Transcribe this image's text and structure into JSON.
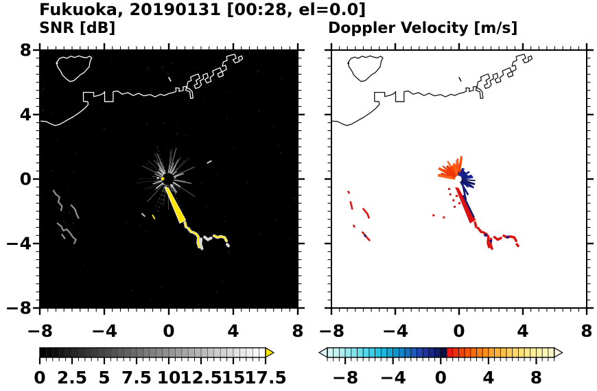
{
  "title": "Fukuoka, 20190131 [00:28, el=0.0]",
  "panels": {
    "snr": {
      "title": "SNR [dB]"
    },
    "velocity": {
      "title": "Doppler Velocity [m/s]"
    }
  },
  "axes": {
    "range": [
      -8,
      8
    ],
    "major_step": 4,
    "minor_step": 0.5,
    "x_tick_values": [
      -8,
      -4,
      0,
      4,
      8
    ],
    "x_tick_labels": [
      "−8",
      "−4",
      "0",
      "4",
      "8"
    ],
    "y_tick_values": [
      8,
      4,
      0,
      -4,
      -8
    ],
    "y_tick_labels": [
      "8",
      "4",
      "0",
      "−4",
      "−8"
    ]
  },
  "colorbars": {
    "snr": {
      "min": 0,
      "max": 17.5,
      "segment_step": 0.5,
      "tick_values": [
        0,
        2.5,
        5,
        7.5,
        10,
        12.5,
        15,
        17.5
      ],
      "tick_labels": [
        "0",
        "2.5",
        "5",
        "7.5",
        "10",
        "12.5",
        "15",
        "17.5"
      ],
      "start_color": "#000000",
      "end_color": "#ffffff",
      "over_arrow_color": "#ffe800"
    },
    "velocity": {
      "min": -9.5,
      "max": 9.5,
      "segment_step": 0.5,
      "tick_values": [
        -8,
        -4,
        0,
        4,
        8
      ],
      "tick_labels": [
        "−8",
        "−4",
        "0",
        "4",
        "8"
      ],
      "under_arrow_color": "#dcf8f6",
      "over_arrow_color": "#faf8e2",
      "segment_colors": [
        "#d6f6f3",
        "#c2f2f1",
        "#adeff0",
        "#99eaef",
        "#83e4ed",
        "#6cdeeb",
        "#54d6e9",
        "#3bcde6",
        "#25c3e2",
        "#1ab6dc",
        "#13a8d4",
        "#0f97cc",
        "#1483c6",
        "#1a6fc0",
        "#1e59b8",
        "#2045ae",
        "#1e339b",
        "#182782",
        "#111b64",
        "#0b1144",
        "#e71711",
        "#ee2d0e",
        "#f2430c",
        "#f5570b",
        "#f86b0a",
        "#fa7e12",
        "#fb901f",
        "#fca22e",
        "#fdb23d",
        "#fdc04c",
        "#fecd5b",
        "#fed76a",
        "#fee079",
        "#fee888",
        "#feee97",
        "#fdf2a6",
        "#fcf5b5",
        "#fbf7c4"
      ]
    }
  },
  "chart_data": {
    "type": "heatmap",
    "figure_title": "Fukuoka, 20190131 [00:28, el=0.0]",
    "subplots": [
      {
        "title": "SNR [dB]",
        "xlim": [
          -8,
          8
        ],
        "ylim": [
          -8,
          8
        ],
        "x_ticks": [
          -8,
          -4,
          0,
          4,
          8
        ],
        "y_ticks": [
          -8,
          -4,
          0,
          4,
          8
        ],
        "background": "#000000",
        "colorbar": {
          "min": 0,
          "max": 17.5,
          "units": "dB",
          "scale": "grayscale black to white",
          "over_color": "#ffe800"
        }
      },
      {
        "title": "Doppler Velocity [m/s]",
        "xlim": [
          -8,
          8
        ],
        "ylim": [
          -8,
          8
        ],
        "x_ticks": [
          -8,
          -4,
          0,
          4,
          8
        ],
        "y_ticks": [
          -8,
          -4,
          0,
          4,
          8
        ],
        "background": "#ffffff",
        "colorbar": {
          "min": -9.5,
          "max": 9.5,
          "units": "m/s",
          "scale": "cyan-blue-navy negative, red-orange-yellow positive"
        }
      }
    ],
    "radar_center": [
      -0.05,
      0.0
    ],
    "map": {
      "mainland": [
        [
          -8,
          3.6
        ],
        [
          -7.6,
          3.56
        ],
        [
          -7.35,
          3.44
        ],
        [
          -7.05,
          3.32
        ],
        [
          -6.75,
          3.4
        ],
        [
          -6.4,
          3.6
        ],
        [
          -5.95,
          3.85
        ],
        [
          -5.55,
          4.12
        ],
        [
          -5.2,
          4.4
        ],
        [
          -5.0,
          4.62
        ],
        [
          -5.02,
          4.8
        ],
        [
          -5.3,
          4.82
        ],
        [
          -5.3,
          5.38
        ],
        [
          -4.66,
          5.38
        ],
        [
          -4.66,
          5.12
        ],
        [
          -4.3,
          5.2
        ],
        [
          -4.05,
          5.32
        ],
        [
          -3.98,
          5.42
        ],
        [
          -3.98,
          4.8
        ],
        [
          -3.45,
          4.8
        ],
        [
          -3.45,
          5.42
        ],
        [
          -3.18,
          5.46
        ],
        [
          -2.88,
          5.26
        ],
        [
          -2.55,
          5.36
        ],
        [
          -2.2,
          5.18
        ],
        [
          -1.88,
          5.32
        ],
        [
          -1.55,
          5.16
        ],
        [
          -1.15,
          5.24
        ],
        [
          -0.85,
          5.1
        ],
        [
          -0.52,
          5.26
        ],
        [
          -0.28,
          5.18
        ],
        [
          0.0,
          5.3
        ],
        [
          0.26,
          5.36
        ]
      ],
      "harbor_chain": [
        [
          0.26,
          5.36
        ],
        [
          0.45,
          5.44
        ],
        [
          0.43,
          5.66
        ],
        [
          0.65,
          5.64
        ],
        [
          0.63,
          5.44
        ],
        [
          0.9,
          5.5
        ],
        [
          0.88,
          5.72
        ],
        [
          1.1,
          5.74
        ],
        [
          1.05,
          5.5
        ],
        [
          1.3,
          5.42
        ],
        [
          1.35,
          5.0
        ],
        [
          1.5,
          5.02
        ],
        [
          1.45,
          5.42
        ],
        [
          1.3,
          5.58
        ],
        [
          1.12,
          5.66
        ],
        [
          1.18,
          6.02
        ],
        [
          1.4,
          6.12
        ],
        [
          1.35,
          6.32
        ],
        [
          1.6,
          6.44
        ],
        [
          1.82,
          6.52
        ],
        [
          1.92,
          6.26
        ],
        [
          1.68,
          6.12
        ],
        [
          1.78,
          5.9
        ],
        [
          1.58,
          5.82
        ],
        [
          1.65,
          5.62
        ],
        [
          1.88,
          5.68
        ],
        [
          2.02,
          5.85
        ],
        [
          1.94,
          6.1
        ],
        [
          2.16,
          6.22
        ],
        [
          2.12,
          6.46
        ],
        [
          2.38,
          6.56
        ],
        [
          2.44,
          6.3
        ],
        [
          2.24,
          6.18
        ],
        [
          2.36,
          5.96
        ],
        [
          2.62,
          6.06
        ],
        [
          2.56,
          6.3
        ],
        [
          2.78,
          6.46
        ],
        [
          2.72,
          6.7
        ],
        [
          2.98,
          6.82
        ],
        [
          3.18,
          6.9
        ],
        [
          3.28,
          6.66
        ],
        [
          3.02,
          6.52
        ],
        [
          3.12,
          6.32
        ],
        [
          3.38,
          6.42
        ],
        [
          3.32,
          6.66
        ],
        [
          3.58,
          6.8
        ],
        [
          3.52,
          7.06
        ],
        [
          3.32,
          7.0
        ],
        [
          3.38,
          7.26
        ],
        [
          3.62,
          7.36
        ],
        [
          3.58,
          7.6
        ],
        [
          3.84,
          7.68
        ],
        [
          4.08,
          7.74
        ],
        [
          4.18,
          7.5
        ],
        [
          3.98,
          7.4
        ],
        [
          4.12,
          7.2
        ],
        [
          4.38,
          7.3
        ],
        [
          4.32,
          7.56
        ],
        [
          4.52,
          7.64
        ],
        [
          4.58,
          7.46
        ],
        [
          4.44,
          7.36
        ]
      ],
      "island": [
        [
          -6.78,
          7.48
        ],
        [
          -6.96,
          7.22
        ],
        [
          -6.9,
          6.96
        ],
        [
          -6.72,
          6.7
        ],
        [
          -6.6,
          6.46
        ],
        [
          -6.36,
          6.22
        ],
        [
          -6.14,
          6.05
        ],
        [
          -5.9,
          6.1
        ],
        [
          -5.68,
          6.28
        ],
        [
          -5.5,
          6.46
        ],
        [
          -5.26,
          6.6
        ],
        [
          -5.08,
          6.8
        ],
        [
          -4.94,
          6.96
        ],
        [
          -4.88,
          7.3
        ],
        [
          -4.78,
          7.52
        ],
        [
          -4.92,
          7.62
        ],
        [
          -5.12,
          7.52
        ],
        [
          -5.34,
          7.56
        ],
        [
          -5.58,
          7.64
        ],
        [
          -5.84,
          7.54
        ],
        [
          -6.08,
          7.62
        ],
        [
          -6.32,
          7.49
        ],
        [
          -6.54,
          7.56
        ]
      ],
      "islet_dot": [
        -6.94,
        7.18
      ],
      "rock": [
        [
          0.0,
          6.3
        ],
        [
          0.12,
          6.08
        ]
      ]
    },
    "shared_echoes": {
      "wedge": [
        [
          -0.25,
          -0.5
        ],
        [
          -0.03,
          -0.55
        ],
        [
          1.05,
          -2.55
        ],
        [
          0.68,
          -2.75
        ]
      ],
      "chain": [
        {
          "pts": [
            [
              1.0,
              -2.7
            ],
            [
              1.07,
              -2.98
            ]
          ],
          "core": true
        },
        {
          "pts": [
            [
              1.2,
              -3.05
            ],
            [
              1.38,
              -3.28
            ]
          ],
          "core": true
        },
        {
          "pts": [
            [
              1.5,
              -3.3
            ],
            [
              1.72,
              -3.42
            ],
            [
              1.84,
              -3.6
            ],
            [
              1.8,
              -3.95
            ],
            [
              1.88,
              -4.22
            ]
          ],
          "core": true
        },
        {
          "pts": [
            [
              2.0,
              -3.72
            ],
            [
              1.97,
              -4.05
            ],
            [
              2.06,
              -4.32
            ]
          ],
          "core": false
        },
        {
          "pts": [
            [
              2.22,
              -3.6
            ],
            [
              2.42,
              -3.76
            ],
            [
              2.62,
              -3.66
            ]
          ],
          "core": false
        },
        {
          "pts": [
            [
              2.8,
              -3.52
            ],
            [
              3.02,
              -3.62
            ],
            [
              3.22,
              -3.56
            ],
            [
              3.46,
              -3.62
            ],
            [
              3.58,
              -3.84
            ]
          ],
          "core": true
        },
        {
          "pts": [
            [
              3.62,
              -4.05
            ],
            [
              3.7,
              -4.15
            ]
          ],
          "core": false
        }
      ]
    },
    "snr_features": {
      "background": "#000000",
      "coast_color": "#ffffff",
      "speckle_count": 170,
      "ray_count": 110,
      "bright_ray_count": 14,
      "ray_color": "#ffffff",
      "echo_outline_color": "#d8d8d8",
      "echo_core_color": "#ffe800",
      "squiggle_color": "#9a9a9a",
      "squiggles": [
        [
          [
            -7.15,
            -0.72
          ],
          [
            -7.0,
            -0.95
          ],
          [
            -6.78,
            -1.12
          ],
          [
            -6.85,
            -1.42
          ],
          [
            -6.62,
            -1.68
          ],
          [
            -6.68,
            -1.95
          ]
        ],
        [
          [
            -6.05,
            -1.62
          ],
          [
            -5.8,
            -1.9
          ],
          [
            -5.72,
            -2.18
          ],
          [
            -5.6,
            -2.42
          ]
        ],
        [
          [
            -6.9,
            -2.75
          ],
          [
            -6.65,
            -2.95
          ],
          [
            -6.55,
            -3.2
          ],
          [
            -6.32,
            -3.12
          ],
          [
            -6.1,
            -3.38
          ],
          [
            -5.95,
            -3.6
          ],
          [
            -5.76,
            -3.76
          ],
          [
            -5.86,
            -3.98
          ]
        ],
        [
          [
            -6.62,
            -3.45
          ],
          [
            -6.45,
            -3.68
          ]
        ]
      ],
      "dashes": [
        {
          "pts": [
            [
              -1.66,
              -2.15
            ],
            [
              -1.5,
              -2.3
            ]
          ],
          "color": "#cccccc"
        },
        {
          "pts": [
            [
              -1.0,
              -2.25
            ],
            [
              -0.88,
              -2.45
            ]
          ],
          "color": "#ffe800"
        },
        {
          "pts": [
            [
              2.4,
              1.0
            ],
            [
              2.62,
              1.12
            ]
          ],
          "color": "#cccccc"
        }
      ],
      "center_dots": [
        {
          "xy": [
            -0.38,
            0.02
          ],
          "color": "#ffe800",
          "r": 2.4
        },
        {
          "xy": [
            -0.68,
            0.06
          ],
          "color": "#ffffff",
          "r": 1.3
        }
      ]
    },
    "velocity_features": {
      "background": "#ffffff",
      "coast_color": "#111111",
      "orange_fan": {
        "angle_range": [
          68,
          172
        ],
        "count": 30,
        "max_r": 1.45,
        "colors": [
          "#ff4a00",
          "#ee3707",
          "#e63010",
          "#ff5f1a"
        ],
        "solid_wedge": {
          "a0": 85,
          "a1": 150,
          "r": 0.92,
          "color": "#ff4a00"
        }
      },
      "navy_fan": {
        "angle_range": [
          -45,
          85
        ],
        "count": 26,
        "max_r": 1.1,
        "colors": [
          "#141b7a",
          "#0c1258",
          "#1a24a0"
        ],
        "solid_wedge": {
          "a0": 12,
          "a1": 70,
          "r": 0.62,
          "color": "#10166a"
        }
      },
      "navy_spikes": [
        [
          [
            0.08,
            -0.15
          ],
          [
            0.55,
            -0.95
          ]
        ],
        [
          [
            0.2,
            -0.2
          ],
          [
            0.42,
            -1.25
          ]
        ],
        [
          [
            0.3,
            -0.1
          ],
          [
            0.88,
            -0.52
          ]
        ]
      ],
      "red_color": "#dd1111",
      "navy_color": "#141b7a",
      "red_specks": [
        [
          -0.55,
          -0.95
        ],
        [
          -0.35,
          -1.32
        ],
        [
          -0.28,
          -1.72
        ],
        [
          0.02,
          -1.5
        ],
        [
          -0.62,
          -0.62
        ],
        [
          -1.6,
          -2.25
        ],
        [
          -0.95,
          -2.38
        ],
        [
          -0.15,
          -1.05
        ]
      ],
      "navy_accents": [
        [
          1.65,
          -3.48
        ],
        [
          1.98,
          -3.85
        ],
        [
          3.05,
          -3.6
        ]
      ],
      "wedge_navy_edge": [
        [
          0.28,
          -1.05
        ],
        [
          0.62,
          -1.75
        ],
        [
          0.92,
          -2.35
        ]
      ],
      "left_marks": [
        {
          "pts": [
            [
              -6.94,
              -0.78
            ],
            [
              -6.9,
              -0.86
            ]
          ]
        },
        {
          "pts": [
            [
              -6.8,
              -1.42
            ],
            [
              -6.7,
              -1.85
            ]
          ]
        },
        {
          "pts": [
            [
              -6.0,
              -1.85
            ],
            [
              -5.75,
              -2.15
            ],
            [
              -5.65,
              -2.4
            ]
          ]
        },
        {
          "pts": [
            [
              -6.6,
              -2.88
            ],
            [
              -6.56,
              -2.96
            ]
          ]
        },
        {
          "pts": [
            [
              -6.05,
              -3.3
            ],
            [
              -5.8,
              -3.6
            ],
            [
              -5.62,
              -3.8
            ]
          ],
          "navy_dot": [
            -5.88,
            -3.52
          ]
        }
      ]
    }
  }
}
